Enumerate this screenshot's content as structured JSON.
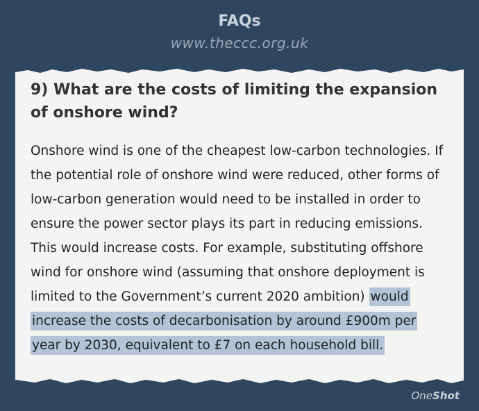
{
  "header": {
    "title": "FAQs",
    "subtitle": "www.theccc.org.uk"
  },
  "question": "9) What are the costs of limiting the expansion of onshore wind?",
  "body": {
    "text": "Onshore wind is one of the cheapest low-carbon technologies. If the potential role of onshore wind were reduced, other forms of low-carbon generation would need to be installed in order to ensure the power sector plays its part in reducing emissions. This would increase costs. For example, substituting offshore wind for onshore wind (assuming that onshore deployment is limited to the Government’s current 2020 ambition)",
    "highlight": "would increase the costs of decarbonisation by around £900m per year by 2030, equivalent to £7 on each household bill."
  },
  "brand": {
    "parts": [
      "One",
      "Shot"
    ]
  }
}
